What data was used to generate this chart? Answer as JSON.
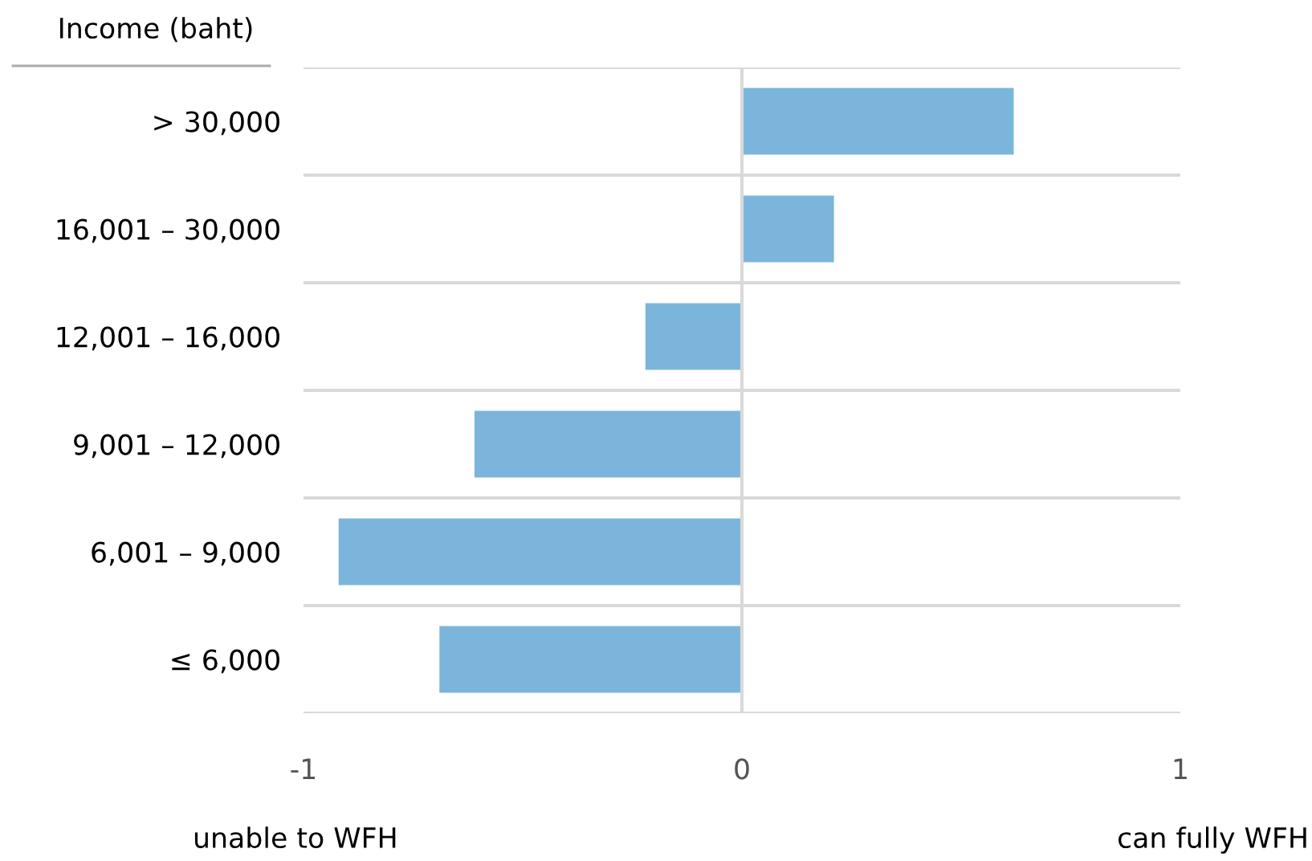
{
  "chart_data": {
    "type": "bar",
    "orientation": "horizontal",
    "ylabel": "Income (baht)",
    "categories": [
      "> 30,000",
      "16,001 – 30,000",
      "12,001 – 16,000",
      "9,001 – 12,000",
      "6,001 – 9,000",
      "≤ 6,000"
    ],
    "values": [
      0.62,
      0.21,
      -0.22,
      -0.61,
      -0.92,
      -0.69
    ],
    "color": "#7bb5db",
    "xlim": [
      -1,
      1
    ],
    "xticks": [
      -1,
      0,
      1
    ],
    "grid": "y",
    "ref_lines": [
      {
        "axis": "x",
        "value": 0,
        "color": "#d9d9d9"
      }
    ],
    "annotations": [
      "unable to WFH",
      "can fully WFH"
    ]
  }
}
